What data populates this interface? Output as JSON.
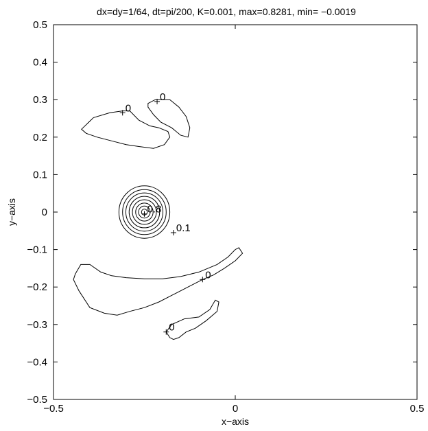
{
  "chart_data": {
    "type": "contour",
    "title": "dx=dy=1/64, dt=pi/200, K=0.001, max=0.8281, min= −0.0019",
    "xlabel": "x−axis",
    "ylabel": "y−axis",
    "xlim": [
      -0.5,
      0.5
    ],
    "ylim": [
      -0.5,
      0.5
    ],
    "grid": false,
    "x_ticks": [
      {
        "value": -0.5,
        "label": "−0.5"
      },
      {
        "value": 0,
        "label": "0"
      },
      {
        "value": 0.5,
        "label": "0.5"
      }
    ],
    "y_ticks": [
      {
        "value": -0.5,
        "label": "−0.5"
      },
      {
        "value": -0.4,
        "label": "−0.4"
      },
      {
        "value": -0.3,
        "label": "−0.3"
      },
      {
        "value": -0.2,
        "label": "−0.2"
      },
      {
        "value": -0.1,
        "label": "−0.1"
      },
      {
        "value": 0,
        "label": "0"
      },
      {
        "value": 0.1,
        "label": "0.1"
      },
      {
        "value": 0.2,
        "label": "0.2"
      },
      {
        "value": 0.3,
        "label": "0.3"
      },
      {
        "value": 0.4,
        "label": "0.4"
      },
      {
        "value": 0.5,
        "label": "0.5"
      }
    ],
    "peak": {
      "x": -0.25,
      "y": 0.0,
      "max": 0.8281
    },
    "contour_levels": [
      0.1,
      0.2,
      0.3,
      0.4,
      0.5,
      0.6,
      0.7,
      0.8
    ],
    "contour_radii": [
      0.07,
      0.06,
      0.051,
      0.042,
      0.033,
      0.024,
      0.016,
      0.008
    ],
    "zero_regions": [
      {
        "name": "upper-left",
        "points": [
          [
            -0.423,
            0.221
          ],
          [
            -0.39,
            0.252
          ],
          [
            -0.345,
            0.265
          ],
          [
            -0.31,
            0.27
          ],
          [
            -0.29,
            0.27
          ],
          [
            -0.265,
            0.245
          ],
          [
            -0.235,
            0.23
          ],
          [
            -0.21,
            0.225
          ],
          [
            -0.185,
            0.215
          ],
          [
            -0.18,
            0.2
          ],
          [
            -0.195,
            0.18
          ],
          [
            -0.225,
            0.17
          ],
          [
            -0.265,
            0.175
          ],
          [
            -0.3,
            0.18
          ],
          [
            -0.34,
            0.19
          ],
          [
            -0.38,
            0.2
          ],
          [
            -0.41,
            0.21
          ]
        ]
      },
      {
        "name": "upper-right",
        "points": [
          [
            -0.24,
            0.29
          ],
          [
            -0.22,
            0.3
          ],
          [
            -0.18,
            0.3
          ],
          [
            -0.155,
            0.28
          ],
          [
            -0.135,
            0.255
          ],
          [
            -0.125,
            0.225
          ],
          [
            -0.13,
            0.2
          ],
          [
            -0.15,
            0.205
          ],
          [
            -0.175,
            0.225
          ],
          [
            -0.205,
            0.24
          ],
          [
            -0.225,
            0.26
          ],
          [
            -0.24,
            0.28
          ]
        ]
      },
      {
        "name": "lower-long",
        "points": [
          [
            -0.44,
            -0.165
          ],
          [
            -0.425,
            -0.14
          ],
          [
            -0.4,
            -0.14
          ],
          [
            -0.37,
            -0.16
          ],
          [
            -0.34,
            -0.17
          ],
          [
            -0.3,
            -0.175
          ],
          [
            -0.25,
            -0.178
          ],
          [
            -0.2,
            -0.178
          ],
          [
            -0.15,
            -0.172
          ],
          [
            -0.1,
            -0.16
          ],
          [
            -0.05,
            -0.14
          ],
          [
            -0.02,
            -0.12
          ],
          [
            0.0,
            -0.1
          ],
          [
            0.01,
            -0.095
          ],
          [
            0.02,
            -0.11
          ],
          [
            0.0,
            -0.13
          ],
          [
            -0.03,
            -0.15
          ],
          [
            -0.06,
            -0.168
          ],
          [
            -0.09,
            -0.18
          ],
          [
            -0.13,
            -0.2
          ],
          [
            -0.17,
            -0.22
          ],
          [
            -0.21,
            -0.24
          ],
          [
            -0.25,
            -0.255
          ],
          [
            -0.29,
            -0.265
          ],
          [
            -0.325,
            -0.275
          ],
          [
            -0.36,
            -0.27
          ],
          [
            -0.4,
            -0.255
          ],
          [
            -0.43,
            -0.21
          ],
          [
            -0.445,
            -0.18
          ]
        ]
      },
      {
        "name": "lower-small",
        "points": [
          [
            -0.19,
            -0.32
          ],
          [
            -0.175,
            -0.3
          ],
          [
            -0.14,
            -0.285
          ],
          [
            -0.1,
            -0.28
          ],
          [
            -0.07,
            -0.26
          ],
          [
            -0.055,
            -0.235
          ],
          [
            -0.045,
            -0.24
          ],
          [
            -0.05,
            -0.265
          ],
          [
            -0.08,
            -0.29
          ],
          [
            -0.11,
            -0.31
          ],
          [
            -0.135,
            -0.32
          ],
          [
            -0.155,
            -0.335
          ],
          [
            -0.17,
            -0.34
          ],
          [
            -0.18,
            -0.335
          ]
        ]
      }
    ],
    "labels": [
      {
        "text": "0",
        "x": -0.31,
        "y": 0.265
      },
      {
        "text": "0",
        "x": -0.215,
        "y": 0.295
      },
      {
        "text": "0.8",
        "x": -0.25,
        "y": -0.005
      },
      {
        "text": "0.1",
        "x": -0.17,
        "y": -0.055
      },
      {
        "text": "0",
        "x": -0.09,
        "y": -0.18
      },
      {
        "text": "0",
        "x": -0.19,
        "y": -0.32
      }
    ]
  }
}
